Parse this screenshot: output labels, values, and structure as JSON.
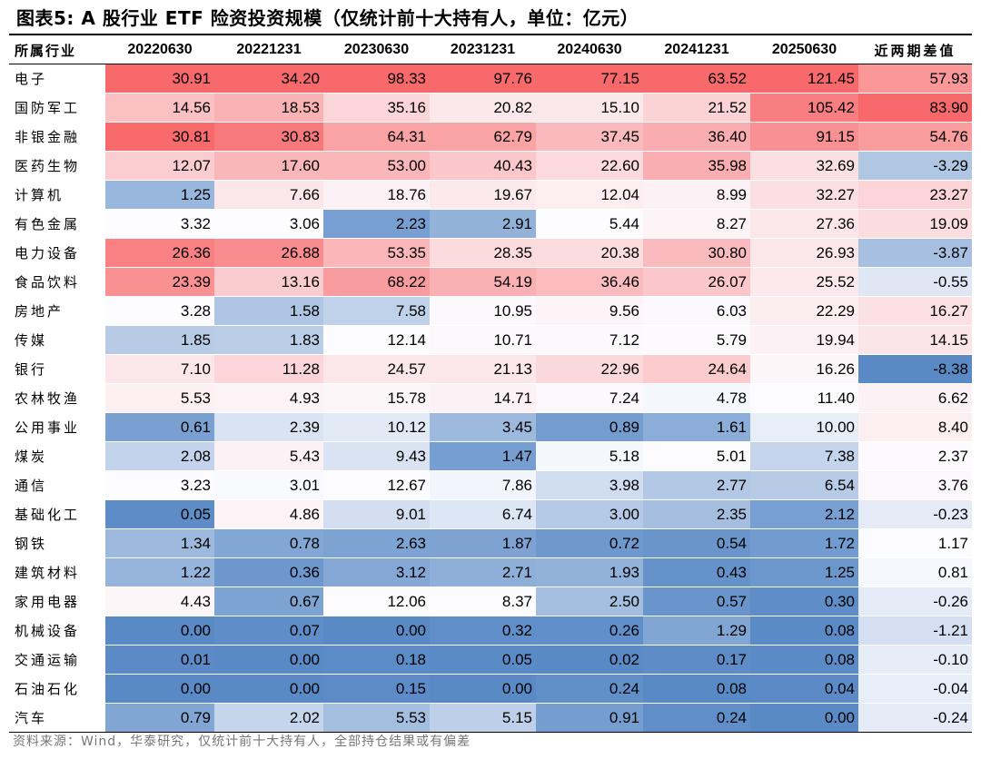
{
  "title": "图表5:  A 股行业 ETF 险资投资规模（仅统计前十大持有人，单位：亿元）",
  "source": "资料来源：Wind，华泰研究，仅统计前十大持有人，全部持仓结果或有偏差",
  "colors": {
    "high": "#f8696b",
    "mid": "#fcfcff",
    "low": "#5a8ac6"
  },
  "headers": [
    "所属行业",
    "20220630",
    "20221231",
    "20230630",
    "20231231",
    "20240630",
    "20241231",
    "20250630",
    "近两期差值"
  ],
  "rows": [
    {
      "industry": "电子",
      "v": [
        "30.91",
        "34.20",
        "98.33",
        "97.76",
        "77.15",
        "63.52",
        "121.45",
        "57.93"
      ]
    },
    {
      "industry": "国防军工",
      "v": [
        "14.56",
        "18.53",
        "35.16",
        "20.82",
        "15.10",
        "21.52",
        "105.42",
        "83.90"
      ]
    },
    {
      "industry": "非银金融",
      "v": [
        "30.81",
        "30.83",
        "64.31",
        "62.79",
        "37.45",
        "36.40",
        "91.15",
        "54.76"
      ]
    },
    {
      "industry": "医药生物",
      "v": [
        "12.07",
        "17.60",
        "53.00",
        "40.43",
        "22.60",
        "35.98",
        "32.69",
        "-3.29"
      ]
    },
    {
      "industry": "计算机",
      "v": [
        "1.25",
        "7.66",
        "18.76",
        "19.67",
        "12.04",
        "8.99",
        "32.27",
        "23.27"
      ]
    },
    {
      "industry": "有色金属",
      "v": [
        "3.32",
        "3.06",
        "2.23",
        "2.91",
        "5.44",
        "8.27",
        "27.36",
        "19.09"
      ]
    },
    {
      "industry": "电力设备",
      "v": [
        "26.36",
        "26.88",
        "53.35",
        "28.35",
        "20.38",
        "30.80",
        "26.93",
        "-3.87"
      ]
    },
    {
      "industry": "食品饮料",
      "v": [
        "23.39",
        "13.16",
        "68.22",
        "54.19",
        "36.46",
        "26.07",
        "25.52",
        "-0.55"
      ]
    },
    {
      "industry": "房地产",
      "v": [
        "3.28",
        "1.58",
        "7.58",
        "10.95",
        "9.56",
        "6.03",
        "22.29",
        "16.27"
      ]
    },
    {
      "industry": "传媒",
      "v": [
        "1.85",
        "1.83",
        "12.14",
        "10.71",
        "7.12",
        "5.79",
        "19.94",
        "14.15"
      ]
    },
    {
      "industry": "银行",
      "v": [
        "7.10",
        "11.28",
        "24.57",
        "21.13",
        "22.96",
        "24.64",
        "16.26",
        "-8.38"
      ]
    },
    {
      "industry": "农林牧渔",
      "v": [
        "5.53",
        "4.93",
        "15.78",
        "14.71",
        "7.24",
        "4.78",
        "11.40",
        "6.62"
      ]
    },
    {
      "industry": "公用事业",
      "v": [
        "0.61",
        "2.39",
        "10.12",
        "3.45",
        "0.89",
        "1.61",
        "10.00",
        "8.40"
      ]
    },
    {
      "industry": "煤炭",
      "v": [
        "2.08",
        "5.43",
        "9.43",
        "1.47",
        "5.18",
        "5.01",
        "7.38",
        "2.37"
      ]
    },
    {
      "industry": "通信",
      "v": [
        "3.23",
        "3.01",
        "12.67",
        "7.86",
        "3.98",
        "2.77",
        "6.54",
        "3.76"
      ]
    },
    {
      "industry": "基础化工",
      "v": [
        "0.05",
        "4.86",
        "9.01",
        "6.74",
        "3.00",
        "2.35",
        "2.12",
        "-0.23"
      ]
    },
    {
      "industry": "钢铁",
      "v": [
        "1.34",
        "0.78",
        "2.63",
        "1.87",
        "0.72",
        "0.54",
        "1.72",
        "1.17"
      ]
    },
    {
      "industry": "建筑材料",
      "v": [
        "1.22",
        "0.36",
        "3.12",
        "2.71",
        "1.93",
        "0.43",
        "1.25",
        "0.81"
      ]
    },
    {
      "industry": "家用电器",
      "v": [
        "4.43",
        "0.67",
        "12.06",
        "8.37",
        "2.50",
        "0.57",
        "0.30",
        "-0.26"
      ]
    },
    {
      "industry": "机械设备",
      "v": [
        "0.00",
        "0.07",
        "0.00",
        "0.32",
        "0.26",
        "1.29",
        "0.08",
        "-1.21"
      ]
    },
    {
      "industry": "交通运输",
      "v": [
        "0.01",
        "0.00",
        "0.18",
        "0.05",
        "0.02",
        "0.17",
        "0.08",
        "-0.10"
      ]
    },
    {
      "industry": "石油石化",
      "v": [
        "0.00",
        "0.00",
        "0.15",
        "0.00",
        "0.24",
        "0.08",
        "0.04",
        "-0.04"
      ]
    },
    {
      "industry": "汽车",
      "v": [
        "0.79",
        "2.02",
        "5.53",
        "5.15",
        "0.91",
        "0.24",
        "0.00",
        "-0.24"
      ]
    }
  ]
}
